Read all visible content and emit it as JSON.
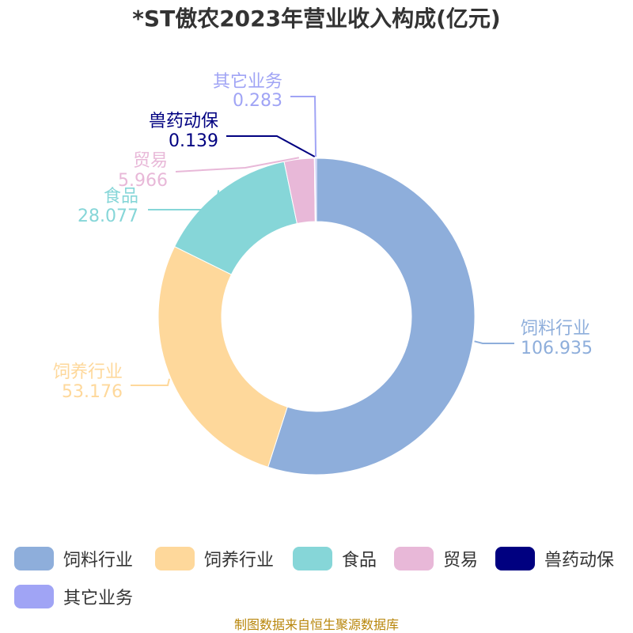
{
  "title": "*ST傲农2023年营业收入构成(亿元)",
  "source": "制图数据来自恒生聚源数据库",
  "chart_data": {
    "type": "pie",
    "variant": "donut",
    "title": "*ST傲农2023年营业收入构成(亿元)",
    "series": [
      {
        "name": "饲料行业",
        "value": 106.935,
        "value_label": "106.935",
        "color": "#8eaedb"
      },
      {
        "name": "饲养行业",
        "value": 53.176,
        "value_label": "53.176",
        "color": "#fed89b"
      },
      {
        "name": "食品",
        "value": 28.077,
        "value_label": "28.077",
        "color": "#86d6d8"
      },
      {
        "name": "贸易",
        "value": 5.966,
        "value_label": "5.966",
        "color": "#e8b8d8"
      },
      {
        "name": "兽药动保",
        "value": 0.139,
        "value_label": "0.139",
        "color": "#000080"
      },
      {
        "name": "其它业务",
        "value": 0.283,
        "value_label": "0.283",
        "color": "#a0a4f5"
      }
    ],
    "legend_position": "bottom"
  }
}
